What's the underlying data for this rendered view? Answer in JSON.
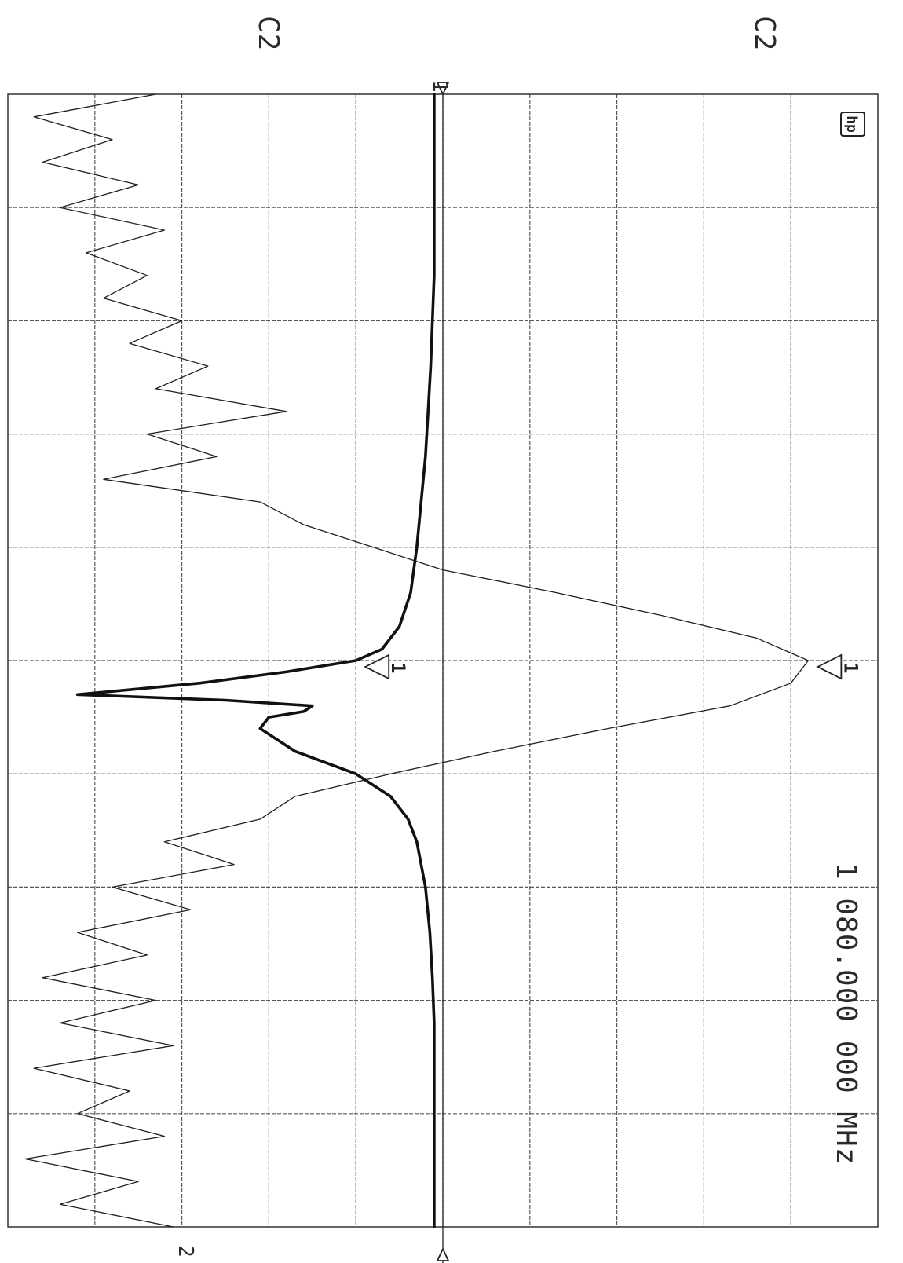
{
  "labels": {
    "c2_left": "C2",
    "c2_right": "C2",
    "center_frequency": "1 080.000 000 MHz",
    "logo": "hp",
    "ref_marker": "1",
    "bottom_fragment": "2"
  },
  "chart_data": {
    "type": "line",
    "orientation": "rotated-90",
    "grid": {
      "divisions_x": 10,
      "divisions_y": 10
    },
    "center_frequency_label": "1 080.000 000 MHz",
    "series": [
      {
        "trace": "transmission",
        "style": "thin",
        "x": [
          0.0,
          0.02,
          0.04,
          0.06,
          0.08,
          0.1,
          0.12,
          0.14,
          0.16,
          0.18,
          0.2,
          0.22,
          0.24,
          0.26,
          0.28,
          0.3,
          0.32,
          0.34,
          0.36,
          0.38,
          0.4,
          0.42,
          0.44,
          0.46,
          0.48,
          0.5,
          0.52,
          0.54,
          0.56,
          0.58,
          0.6,
          0.62,
          0.64,
          0.66,
          0.68,
          0.7,
          0.72,
          0.74,
          0.76,
          0.78,
          0.8,
          0.82,
          0.84,
          0.86,
          0.88,
          0.9,
          0.92,
          0.94,
          0.96,
          0.98,
          1.0
        ],
        "y": [
          1.7,
          0.3,
          1.2,
          0.4,
          1.5,
          0.6,
          1.8,
          0.9,
          1.6,
          1.1,
          2.0,
          1.4,
          2.3,
          1.7,
          3.2,
          1.6,
          2.4,
          1.1,
          2.9,
          3.4,
          4.2,
          5.0,
          6.3,
          7.5,
          8.6,
          9.2,
          9.0,
          8.3,
          6.9,
          5.6,
          4.4,
          3.3,
          2.9,
          1.8,
          2.6,
          1.2,
          2.1,
          0.8,
          1.6,
          0.4,
          1.7,
          0.6,
          1.9,
          0.3,
          1.4,
          0.8,
          1.8,
          0.2,
          1.5,
          0.6,
          1.9
        ]
      },
      {
        "trace": "reflection",
        "style": "thick",
        "x": [
          0.0,
          0.04,
          0.08,
          0.12,
          0.16,
          0.2,
          0.24,
          0.28,
          0.32,
          0.36,
          0.4,
          0.44,
          0.47,
          0.49,
          0.5,
          0.51,
          0.52,
          0.53,
          0.535,
          0.54,
          0.545,
          0.55,
          0.56,
          0.58,
          0.6,
          0.62,
          0.64,
          0.66,
          0.7,
          0.74,
          0.78,
          0.82,
          0.86,
          0.9,
          0.94,
          0.98,
          1.0
        ],
        "y": [
          4.9,
          4.9,
          4.9,
          4.9,
          4.9,
          4.88,
          4.86,
          4.83,
          4.8,
          4.75,
          4.7,
          4.63,
          4.5,
          4.3,
          4.0,
          3.2,
          2.2,
          0.8,
          2.5,
          3.5,
          3.4,
          3.0,
          2.9,
          3.3,
          4.0,
          4.4,
          4.6,
          4.7,
          4.8,
          4.85,
          4.88,
          4.9,
          4.9,
          4.9,
          4.9,
          4.9,
          4.9
        ]
      }
    ],
    "markers": [
      {
        "id": "1",
        "trace": "transmission",
        "x": 0.5
      },
      {
        "id": "1",
        "trace": "reflection",
        "x": 0.5
      }
    ]
  }
}
